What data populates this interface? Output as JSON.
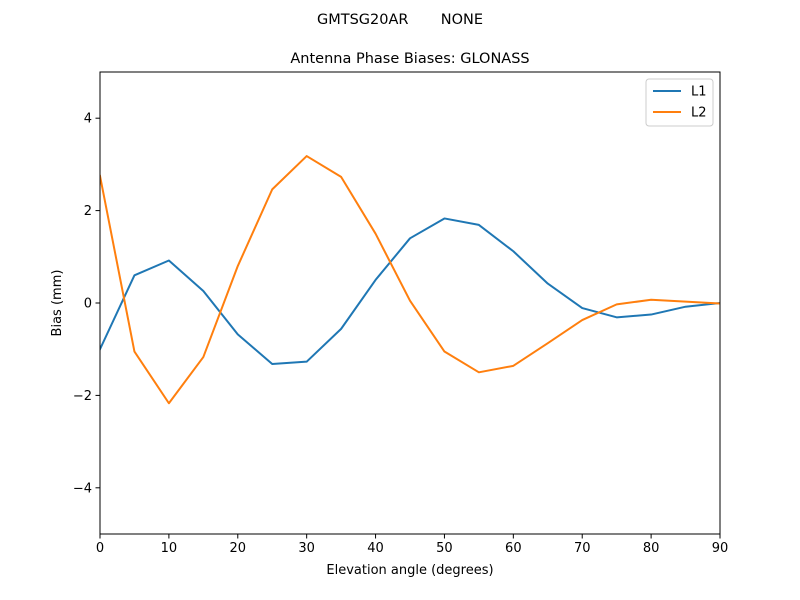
{
  "figure": {
    "suptitle": "GMTSG20AR       NONE"
  },
  "chart_data": {
    "type": "line",
    "title": "Antenna Phase Biases: GLONASS",
    "xlabel": "Elevation angle (degrees)",
    "ylabel": "Bias (mm)",
    "xlim": [
      0,
      90
    ],
    "ylim": [
      -5,
      5
    ],
    "xticks": [
      0,
      10,
      20,
      30,
      40,
      50,
      60,
      70,
      80,
      90
    ],
    "yticks": [
      -4,
      -2,
      0,
      2,
      4
    ],
    "ytick_labels": [
      "−4",
      "−2",
      "0",
      "2",
      "4"
    ],
    "grid": false,
    "legend": {
      "placement": "top-right",
      "entries": [
        "L1",
        "L2"
      ]
    },
    "x": [
      0,
      5,
      10,
      15,
      20,
      25,
      30,
      35,
      40,
      45,
      50,
      55,
      60,
      65,
      70,
      75,
      80,
      85,
      90
    ],
    "series": [
      {
        "name": "L1",
        "color": "#1f77b4",
        "values": [
          -1.0,
          0.6,
          0.92,
          0.26,
          -0.68,
          -1.32,
          -1.27,
          -0.56,
          0.5,
          1.4,
          1.83,
          1.69,
          1.12,
          0.42,
          -0.11,
          -0.31,
          -0.25,
          -0.08,
          0.0
        ]
      },
      {
        "name": "L2",
        "color": "#ff7f0e",
        "values": [
          2.75,
          -1.05,
          -2.17,
          -1.17,
          0.8,
          2.46,
          3.18,
          2.73,
          1.5,
          0.05,
          -1.05,
          -1.5,
          -1.36,
          -0.87,
          -0.37,
          -0.03,
          0.07,
          0.03,
          -0.01
        ]
      }
    ]
  }
}
